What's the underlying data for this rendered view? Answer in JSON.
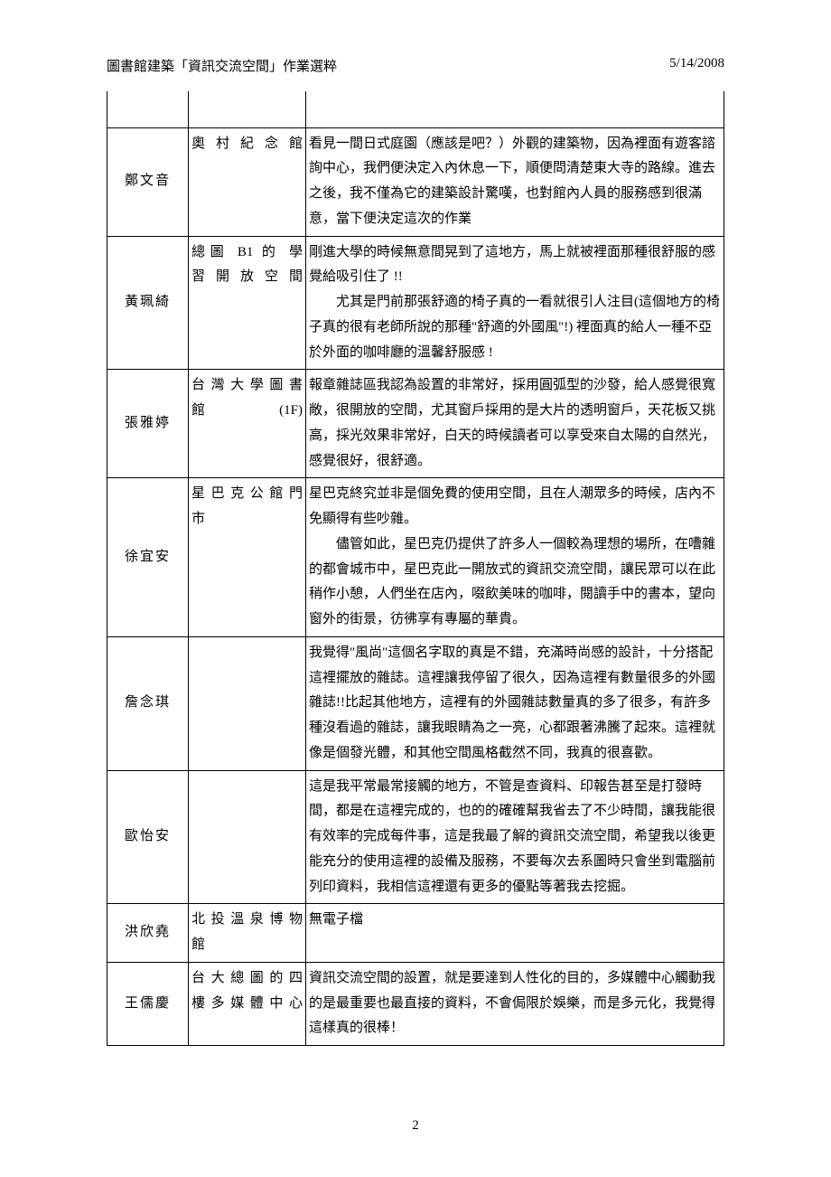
{
  "header": {
    "title": "圖書館建築「資訊交流空間」作業選粹",
    "date": "5/14/2008"
  },
  "rows": [
    {
      "name": "鄭文音",
      "place": "奧村紀念館",
      "desc": "看見一間日式庭園（應該是吧？）外觀的建築物，因為裡面有遊客諮詢中心，我們便決定入內休息一下，順便問清楚東大寺的路線。進去之後，我不僅為它的建築設計驚嘆，也對館內人員的服務感到很滿意，當下便決定這次的作業"
    },
    {
      "name": "黃珮綺",
      "place_lines": [
        "總圖 B1 的 學",
        "習開放空間"
      ],
      "desc_lines": [
        {
          "text": "剛進大學的時候無意間晃到了這地方，馬上就被裡面那種很舒服的感覺給吸引住了 !!",
          "indent": false
        },
        {
          "text": "尤其是門前那張舒適的椅子真的一看就很引人注目(這個地方的椅子真的很有老師所說的那種\"舒適的外國風\"!) 裡面真的給人一種不亞於外面的咖啡廳的溫馨舒服感 !",
          "indent": true
        }
      ]
    },
    {
      "name": "張雅婷",
      "place_lines": [
        "台灣大學圖書",
        "館(1F)"
      ],
      "desc": "報章雜誌區我認為設置的非常好，採用圓弧型的沙發，給人感覺很寬敞，很開放的空間，尤其窗戶採用的是大片的透明窗戶，天花板又挑高，採光效果非常好，白天的時候讀者可以享受來自太陽的自然光，感覺很好，很舒適。"
    },
    {
      "name": "徐宜安",
      "place_lines": [
        "星巴克公館門",
        "市"
      ],
      "desc_lines": [
        {
          "text": "星巴克終究並非是個免費的使用空間，且在人潮眾多的時候，店內不免顯得有些吵雜。",
          "indent": false
        },
        {
          "text": "儘管如此，星巴克仍提供了許多人一個較為理想的場所，在嘈雜的都會城市中，星巴克此一開放式的資訊交流空間，讓民眾可以在此稍作小憩，人們坐在店內，啜飲美味的咖啡，閱讀手中的書本，望向窗外的街景，彷彿享有專屬的華貴。",
          "indent": true
        }
      ]
    },
    {
      "name": "詹念琪",
      "place": "",
      "desc": "我覺得\"風尚\"這個名字取的真是不錯，充滿時尚感的設計，十分搭配這裡擺放的雜誌。這裡讓我停留了很久，因為這裡有數量很多的外國雜誌!!比起其他地方，這裡有的外國雜誌數量真的多了很多，有許多種沒看過的雜誌，讓我眼睛為之一亮，心都跟著沸騰了起來。這裡就像是個發光體，和其他空間風格截然不同，我真的很喜歡。"
    },
    {
      "name": "歐怡安",
      "place": "",
      "desc": "這是我平常最常接觸的地方，不管是查資料、印報告甚至是打發時間，都是在這裡完成的，也的的確確幫我省去了不少時間，讓我能很有效率的完成每件事，這是我最了解的資訊交流空間，希望我以後更能充分的使用這裡的設備及服務，不要每次去系圖時只會坐到電腦前列印資料，我相信這裡還有更多的優點等著我去挖掘。"
    },
    {
      "name": "洪欣堯",
      "place_lines": [
        "北投溫泉博物",
        "館"
      ],
      "desc": "無電子檔"
    },
    {
      "name": "王儒慶",
      "place_lines": [
        "台大總圖的四",
        "樓多媒體中心"
      ],
      "desc": "資訊交流空間的設置，就是要達到人性化的目的，多媒體中心觸動我的是最重要也最直接的資料，不會侷限於娛樂，而是多元化，我覺得這樣真的很棒！"
    }
  ],
  "page_number": "2"
}
